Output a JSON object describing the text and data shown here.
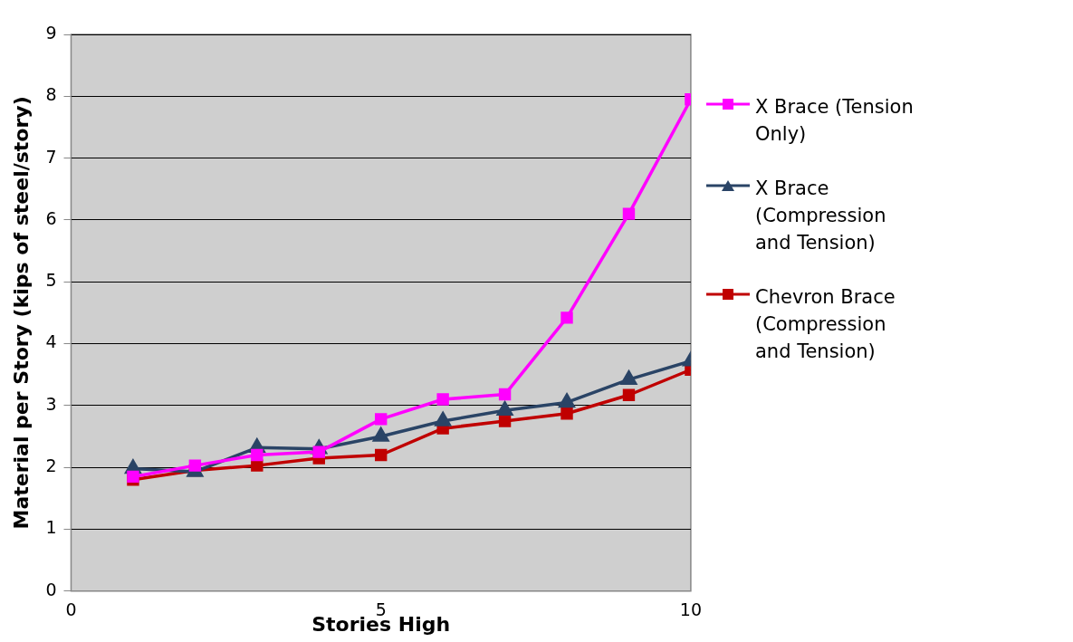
{
  "chart_data": {
    "type": "line",
    "xlabel": "Stories High",
    "ylabel": "Material per Story (kips of steel/story)",
    "x": [
      1,
      2,
      3,
      4,
      5,
      6,
      7,
      8,
      9,
      10
    ],
    "xlim": [
      0,
      10
    ],
    "xticks": [
      0,
      5,
      10
    ],
    "ylim": [
      0,
      9
    ],
    "yticks": [
      0,
      1,
      2,
      3,
      4,
      5,
      6,
      7,
      8,
      9
    ],
    "grid": "y",
    "legend": "right",
    "series": [
      {
        "name": "X Brace (Tension Only)",
        "color": "#ff00ff",
        "marker": "square",
        "values": [
          1.85,
          2.03,
          2.2,
          2.25,
          2.78,
          3.1,
          3.18,
          4.42,
          6.1,
          7.95
        ]
      },
      {
        "name": "X Brace (Compression and Tension)",
        "color": "#2a4466",
        "marker": "triangle",
        "values": [
          1.98,
          1.93,
          2.32,
          2.3,
          2.5,
          2.75,
          2.92,
          3.05,
          3.42,
          3.72
        ]
      },
      {
        "name": "Chevron Brace (Compression and Tension)",
        "color": "#c00000",
        "marker": "square",
        "values": [
          1.8,
          1.95,
          2.03,
          2.15,
          2.2,
          2.63,
          2.75,
          2.87,
          3.17,
          3.58
        ]
      }
    ]
  }
}
